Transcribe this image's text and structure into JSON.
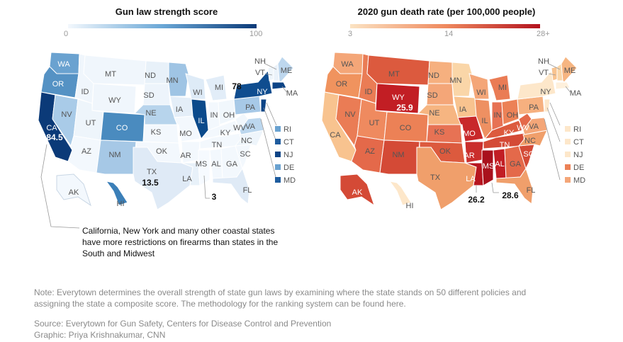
{
  "left_map": {
    "title": "Gun law strength score",
    "scale_min": "0",
    "scale_max": "100",
    "color_low": "#f3f8fd",
    "color_high": "#0b3a78",
    "states": {
      "WA": "WA",
      "OR": "OR",
      "CA": "CA",
      "NV": "NV",
      "ID": "ID",
      "MT": "MT",
      "WY": "WY",
      "UT": "UT",
      "AZ": "AZ",
      "CO": "CO",
      "NM": "NM",
      "ND": "ND",
      "SD": "SD",
      "NE": "NE",
      "KS": "KS",
      "OK": "OK",
      "TX": "TX",
      "MN": "MN",
      "IA": "IA",
      "MO": "MO",
      "AR": "AR",
      "LA": "LA",
      "WI": "WI",
      "IL": "IL",
      "MI": "MI",
      "IN": "IN",
      "OH": "OH",
      "KY": "KY",
      "TN": "TN",
      "MS": "MS",
      "AL": "AL",
      "GA": "GA",
      "FL": "FL",
      "SC": "SC",
      "NC": "NC",
      "VA": "VA",
      "WV": "WV",
      "PA": "PA",
      "NY": "NY",
      "ME": "ME",
      "VT": "VT",
      "NH": "NH",
      "MA": "MA",
      "AK": "AK",
      "HI": "HI"
    },
    "small_states": [
      "RI",
      "CT",
      "NJ",
      "DE",
      "MD"
    ],
    "callout_ca": "84.5",
    "callout_ny": "78",
    "callout_tx": "13.5",
    "callout_ms": "3",
    "annotation_line1": "California, New York and many other coastal states",
    "annotation_line2": "have more restrictions on firearms than states in the",
    "annotation_line3": "South and Midwest"
  },
  "right_map": {
    "title": "2020 gun death rate (per 100,000 people)",
    "scale_min": "3",
    "scale_mid": "14",
    "scale_max": "28+",
    "color_low": "#fbe3c3",
    "color_high": "#b3121e",
    "states": {
      "WA": "WA",
      "OR": "OR",
      "CA": "CA",
      "NV": "NV",
      "ID": "ID",
      "MT": "MT",
      "WY": "WY",
      "UT": "UT",
      "AZ": "AZ",
      "CO": "CO",
      "NM": "NM",
      "ND": "ND",
      "SD": "SD",
      "NE": "NE",
      "KS": "KS",
      "OK": "OK",
      "TX": "TX",
      "MN": "MN",
      "IA": "IA",
      "MO": "MO",
      "AR": "AR",
      "LA": "LA",
      "WI": "WI",
      "IL": "IL",
      "MI": "MI",
      "IN": "IN",
      "OH": "OH",
      "KY": "KY",
      "TN": "TN",
      "MS": "MS",
      "AL": "AL",
      "GA": "GA",
      "FL": "FL",
      "SC": "SC",
      "NC": "NC",
      "VA": "VA",
      "WV": "WV",
      "PA": "PA",
      "NY": "NY",
      "ME": "ME",
      "VT": "VT",
      "NH": "NH",
      "MA": "MA",
      "AK": "AK",
      "HI": "HI"
    },
    "small_states": [
      "RI",
      "CT",
      "NJ",
      "DE",
      "MD"
    ],
    "callout_wy": "25.9",
    "callout_la": "26.2",
    "callout_ms": "28.6"
  },
  "footer": {
    "note_line1": "Note: Everytown determines the overall strength of state gun laws by examining where the state stands on 50 different policies and",
    "note_line2": "assigning the state a composite score. The methodology for the ranking system can be found here.",
    "source": "Source: Everytown for Gun Safety, Centers for Disease Control and Prevention",
    "graphic": "Graphic: Priya Krishnakumar, CNN"
  }
}
